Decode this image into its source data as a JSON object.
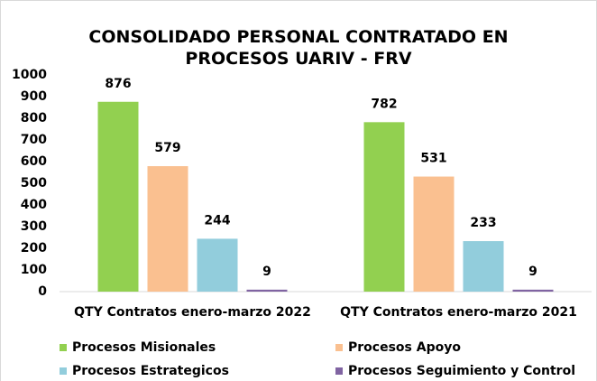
{
  "chart_data": {
    "type": "bar",
    "title": "CONSOLIDADO PERSONAL CONTRATADO EN PROCESOS UARIV - FRV",
    "categories": [
      "QTY Contratos enero-marzo 2022",
      "QTY Contratos enero-marzo 2021"
    ],
    "series": [
      {
        "name": "Procesos Misionales",
        "color": "#92d050",
        "values": [
          876,
          782
        ]
      },
      {
        "name": "Procesos Apoyo",
        "color": "#fac090",
        "values": [
          579,
          531
        ]
      },
      {
        "name": "Procesos Estrategicos",
        "color": "#92cddc",
        "values": [
          244,
          233
        ]
      },
      {
        "name": "Procesos Seguimiento y Control",
        "color": "#8064a2",
        "values": [
          9,
          9
        ]
      }
    ],
    "ylim": [
      0,
      1000
    ],
    "yticks": [
      0,
      100,
      200,
      300,
      400,
      500,
      600,
      700,
      800,
      900,
      1000
    ],
    "grid": false,
    "legend": "bottom"
  }
}
